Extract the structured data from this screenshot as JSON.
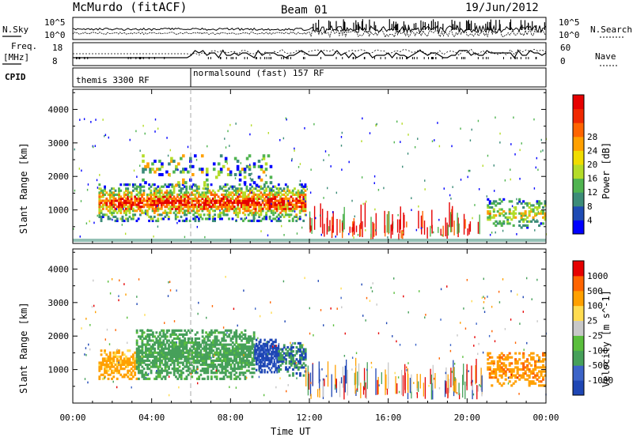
{
  "header": {
    "station": "McMurdo (fitACF)",
    "beam": "Beam 01",
    "date": "19/Jun/2012"
  },
  "param_panels": {
    "nsky_label": "N.Sky",
    "nsearch_label": "N.Search",
    "nsky_ticks": [
      "10^5",
      "10^0"
    ],
    "nsearch_ticks": [
      "10^5",
      "10^0"
    ],
    "freq_label": "Freq.",
    "freq_unit": "[MHz]",
    "freq_ticks": [
      "18",
      "8"
    ],
    "nave_label": "Nave",
    "nave_ticks": [
      "60",
      "0"
    ],
    "cpid_label": "CPID",
    "cpid_segments": [
      {
        "label": "themis 3300 RF",
        "start_hour": 0
      },
      {
        "label": "normalsound (fast) 157 RF",
        "start_hour": 6
      }
    ]
  },
  "chart_data": [
    {
      "type": "heatmap",
      "name": "power",
      "ylabel": "Slant Range [km]",
      "y_ticks": [
        "1000",
        "2000",
        "3000",
        "4000"
      ],
      "ylim": [
        0,
        4600
      ],
      "xlim": [
        0,
        24
      ],
      "colorbar": {
        "label": "Power [dB]",
        "ticks": [
          "4",
          "8",
          "12",
          "16",
          "20",
          "24",
          "28"
        ],
        "colors": [
          "#0000ff",
          "#1e4bb4",
          "#3c8c78",
          "#50b450",
          "#b4dc28",
          "#f0dc00",
          "#ffa000",
          "#ff6400",
          "#f02800",
          "#e60000"
        ]
      },
      "regions": [
        {
          "x": [
            1.3,
            11.8
          ],
          "y": [
            600,
            1750
          ],
          "level": "moderate-high"
        },
        {
          "x": [
            11.8,
            20.9
          ],
          "y": [
            200,
            900
          ],
          "level": "mixed-striated"
        },
        {
          "x": [
            21.0,
            24.0
          ],
          "y": [
            400,
            1300
          ],
          "level": "low-moderate"
        }
      ]
    },
    {
      "type": "heatmap",
      "name": "velocity",
      "ylabel": "Slant Range [km]",
      "y_ticks": [
        "1000",
        "2000",
        "3000",
        "4000"
      ],
      "ylim": [
        0,
        4600
      ],
      "xlim": [
        0,
        24
      ],
      "xlabel": "Time UT",
      "x_ticks": [
        "00:00",
        "04:00",
        "08:00",
        "12:00",
        "16:00",
        "20:00",
        "00:00"
      ],
      "colorbar": {
        "label": "Velocity [m s^-1]",
        "ticks": [
          "1000",
          "500",
          "100",
          "25",
          "-25",
          "-100",
          "-500",
          "-1000"
        ],
        "colors": [
          "#1e46b4",
          "#3c64c8",
          "#46a05a",
          "#5abe3c",
          "#c8c8c8",
          "#ffdc50",
          "#ffa000",
          "#ff6400",
          "#e60000"
        ]
      },
      "regions": [
        {
          "x": [
            1.3,
            3.2
          ],
          "y": [
            700,
            1600
          ],
          "level": "toward (orange)"
        },
        {
          "x": [
            3.2,
            9.2
          ],
          "y": [
            700,
            2200
          ],
          "level": "away (green)"
        },
        {
          "x": [
            9.2,
            10.4
          ],
          "y": [
            900,
            1900
          ],
          "level": "strong away (blue)"
        },
        {
          "x": [
            21.0,
            24.0
          ],
          "y": [
            500,
            1500
          ],
          "level": "toward (orange)"
        }
      ]
    }
  ]
}
